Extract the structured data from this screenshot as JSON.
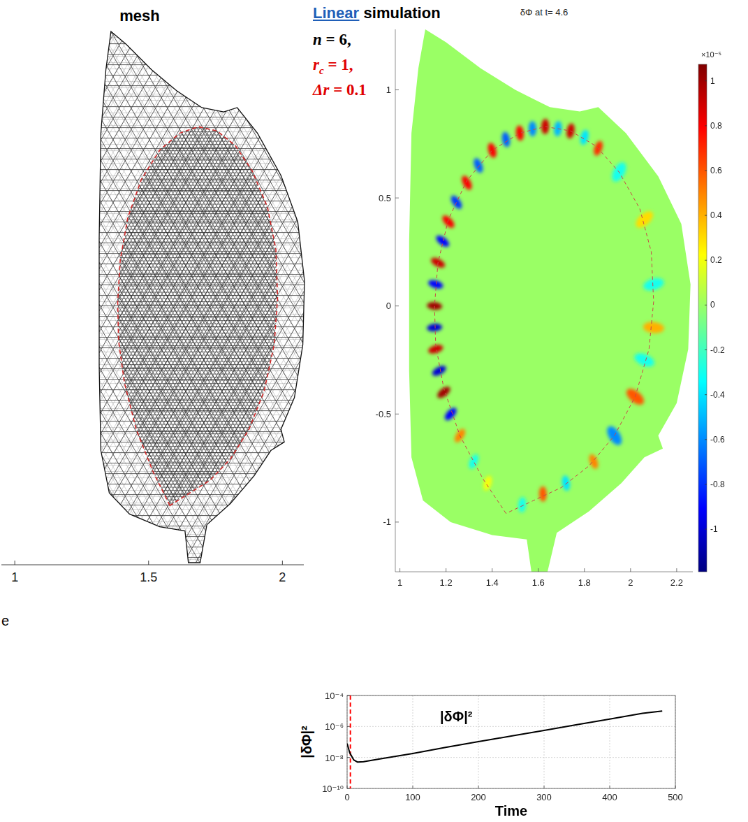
{
  "fragments": [
    "e"
  ],
  "mesh_panel": {
    "title": "mesh",
    "xlim": [
      0.95,
      2.08
    ],
    "xticks": [
      1,
      1.5,
      2
    ]
  },
  "annotation": {
    "highlight": "Linear",
    "text": " simulation",
    "params": [
      {
        "symbol": "n",
        "text": " = 6,",
        "color": "#000000"
      },
      {
        "symbol": "r",
        "subscript": "c",
        "text": " = 1,",
        "color": "#e00000"
      },
      {
        "symbol": "Δr",
        "text": " = 0.1",
        "color": "#e00000"
      }
    ]
  },
  "geometry": {
    "outer_boundary": {
      "R": [
        1.11,
        1.2,
        1.35,
        1.5,
        1.65,
        1.78,
        1.86,
        1.98,
        2.12,
        2.22,
        2.26,
        2.25,
        2.2,
        2.12,
        2.14,
        2.06,
        1.96,
        1.82,
        1.68,
        1.64,
        1.57,
        1.55,
        1.4,
        1.22,
        1.1,
        1.05,
        1.04,
        1.04,
        1.05,
        1.08
      ],
      "Z": [
        1.28,
        1.22,
        1.1,
        1.0,
        0.92,
        0.9,
        0.92,
        0.8,
        0.6,
        0.38,
        0.1,
        -0.2,
        -0.45,
        -0.6,
        -0.66,
        -0.7,
        -0.82,
        -0.95,
        -1.05,
        -1.23,
        -1.23,
        -1.08,
        -1.06,
        -1.0,
        -0.9,
        -0.7,
        -0.3,
        0.3,
        0.8,
        1.1
      ]
    },
    "surface": {
      "R": [
        1.46,
        1.36,
        1.26,
        1.19,
        1.155,
        1.15,
        1.165,
        1.21,
        1.29,
        1.4,
        1.52,
        1.63,
        1.74,
        1.85,
        1.95,
        2.04,
        2.09,
        2.1,
        2.08,
        2.02,
        1.93,
        1.82,
        1.7,
        1.58,
        1.46
      ],
      "Z": [
        -0.96,
        -0.8,
        -0.6,
        -0.38,
        -0.18,
        0.0,
        0.2,
        0.4,
        0.58,
        0.72,
        0.8,
        0.83,
        0.81,
        0.74,
        0.62,
        0.45,
        0.25,
        0.02,
        -0.2,
        -0.42,
        -0.6,
        -0.74,
        -0.84,
        -0.9,
        -0.96
      ]
    }
  },
  "chart_data": [
    {
      "type": "contour",
      "title": "δΦ at t= 4.6",
      "xlim": [
        0.98,
        2.27
      ],
      "xticks": [
        1,
        1.2,
        1.4,
        1.6,
        1.8,
        2,
        2.2
      ],
      "ylim": [
        -1.23,
        1.28
      ],
      "yticks": [
        -1,
        -0.5,
        0,
        0.5,
        1
      ],
      "field_background": 0,
      "points": {
        "x": [
          1.26,
          1.22,
          1.19,
          1.17,
          1.155,
          1.15,
          1.15,
          1.155,
          1.165,
          1.185,
          1.21,
          1.245,
          1.29,
          1.34,
          1.4,
          1.46,
          1.52,
          1.575,
          1.63,
          1.685,
          1.74,
          1.8,
          1.86,
          1.95,
          2.06,
          2.1,
          2.1,
          2.06,
          2.02,
          1.93,
          1.84,
          1.72,
          1.62,
          1.53,
          1.32,
          1.38
        ],
        "y": [
          -0.6,
          -0.5,
          -0.4,
          -0.3,
          -0.2,
          -0.1,
          0.0,
          0.1,
          0.2,
          0.3,
          0.39,
          0.48,
          0.57,
          0.65,
          0.72,
          0.77,
          0.8,
          0.82,
          0.83,
          0.82,
          0.81,
          0.78,
          0.73,
          0.62,
          0.4,
          0.1,
          -0.1,
          -0.25,
          -0.42,
          -0.6,
          -0.72,
          -0.82,
          -0.87,
          -0.92,
          -0.72,
          -0.82
        ],
        "values": [
          0.5,
          -0.9,
          1.0,
          -1.0,
          0.9,
          -1.0,
          1.0,
          -0.9,
          0.9,
          -0.9,
          0.8,
          -0.8,
          0.8,
          -0.7,
          0.8,
          -0.7,
          0.8,
          -0.6,
          0.9,
          -0.5,
          0.9,
          -0.4,
          0.7,
          -0.3,
          0.3,
          -0.3,
          0.4,
          -0.3,
          0.6,
          -0.6,
          0.5,
          -0.4,
          0.6,
          -0.3,
          -0.3,
          0.2
        ]
      },
      "colorbar": {
        "lim": [
          -1.19,
          1.074
        ],
        "ticks": [
          1,
          0.8,
          0.6,
          0.4,
          0.2,
          0,
          -0.2,
          -0.4,
          -0.6,
          -0.8,
          -1
        ],
        "label": "×10⁻⁵"
      }
    },
    {
      "type": "line",
      "x_label": "Time",
      "y_label": "|δΦ|²",
      "log": "y",
      "grid": true,
      "xlim": [
        0,
        500
      ],
      "xticks": [
        0,
        100,
        200,
        300,
        400,
        500
      ],
      "ylim": [
        1e-10,
        0.0001
      ],
      "yticks": [
        {
          "value": 1e-10,
          "label": "10⁻¹⁰"
        },
        {
          "value": 1e-08,
          "label": "10⁻⁸"
        },
        {
          "value": 1e-06,
          "label": "10⁻⁶"
        },
        {
          "value": 0.0001,
          "label": "10⁻⁴"
        }
      ],
      "x": [
        0,
        4,
        10,
        16,
        25,
        50,
        100,
        150,
        200,
        250,
        300,
        350,
        400,
        450,
        480
      ],
      "series": [
        {
          "name": "|δΦ|²",
          "color": "#000000",
          "values": [
            8e-08,
            2e-08,
            7e-09,
            5e-09,
            5.3e-09,
            8e-09,
            1.8e-08,
            4.5e-08,
            1.05e-07,
            2.4e-07,
            5.6e-07,
            1.3e-06,
            3e-06,
            7e-06,
            1e-05
          ]
        }
      ],
      "vline": {
        "x": 5,
        "color": "#ff0000"
      }
    }
  ]
}
